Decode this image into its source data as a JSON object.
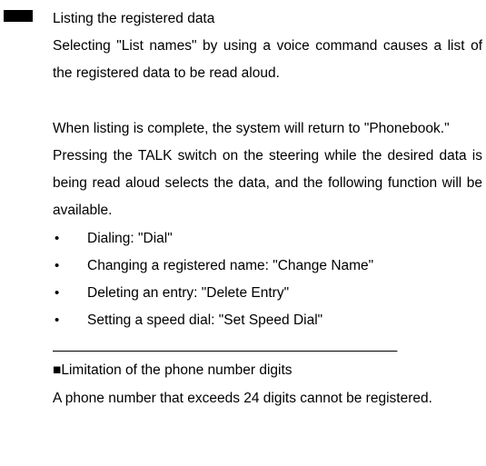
{
  "heading": "Listing the registered data",
  "para1": "Selecting \"List names\" by using a voice command causes a list of the registered data to be read aloud.",
  "para2": "When listing is complete, the system will return to \"Phonebook.\"",
  "para3": "Pressing the TALK switch on the steering while the desired data is being read aloud selects the data, and the following function will be available.",
  "bullets": [
    "Dialing: \"Dial\"",
    "Changing a registered name: \"Change Name\"",
    "Deleting an entry: \"Delete Entry\"",
    "Setting a speed dial: \"Set Speed Dial\""
  ],
  "divider_line": "____________________________________________",
  "limitation_heading": "■Limitation of the phone number digits",
  "limitation_text": "A phone number that exceeds 24 digits cannot be registered."
}
